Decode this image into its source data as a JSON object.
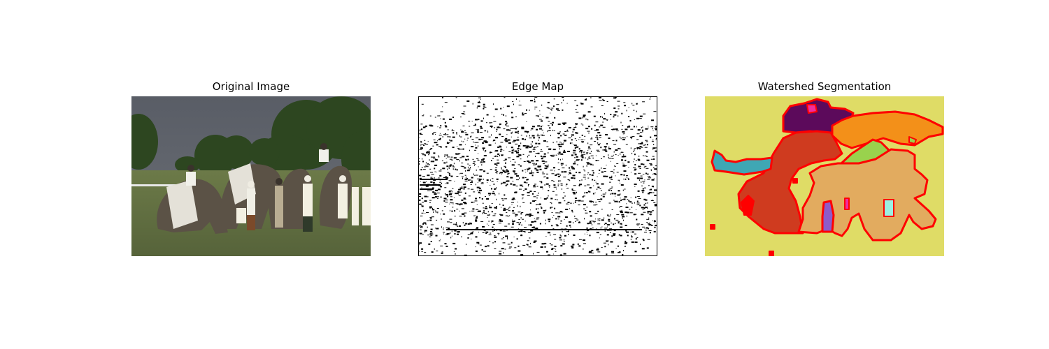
{
  "figure": {
    "panels": [
      {
        "title": "Original Image"
      },
      {
        "title": "Edge Map"
      },
      {
        "title": "Watershed Segmentation"
      }
    ]
  },
  "colors": {
    "sky": "#5d6168",
    "grass": "#5d6b3d",
    "tree": "#2f4a1f",
    "elephant": "#5e5548",
    "segment_yellow": "#dfdc66",
    "segment_red": "#cf3b1f",
    "segment_orange": "#f39019",
    "segment_purple": "#5c0a5b",
    "segment_tan": "#e2ab5f",
    "segment_teal": "#3fa7b4",
    "segment_green": "#99d24d",
    "segment_violet": "#8d5bc9",
    "segment_magenta": "#f02d9e",
    "segment_cyan": "#9cf0e2",
    "boundary": "#ff0000"
  }
}
